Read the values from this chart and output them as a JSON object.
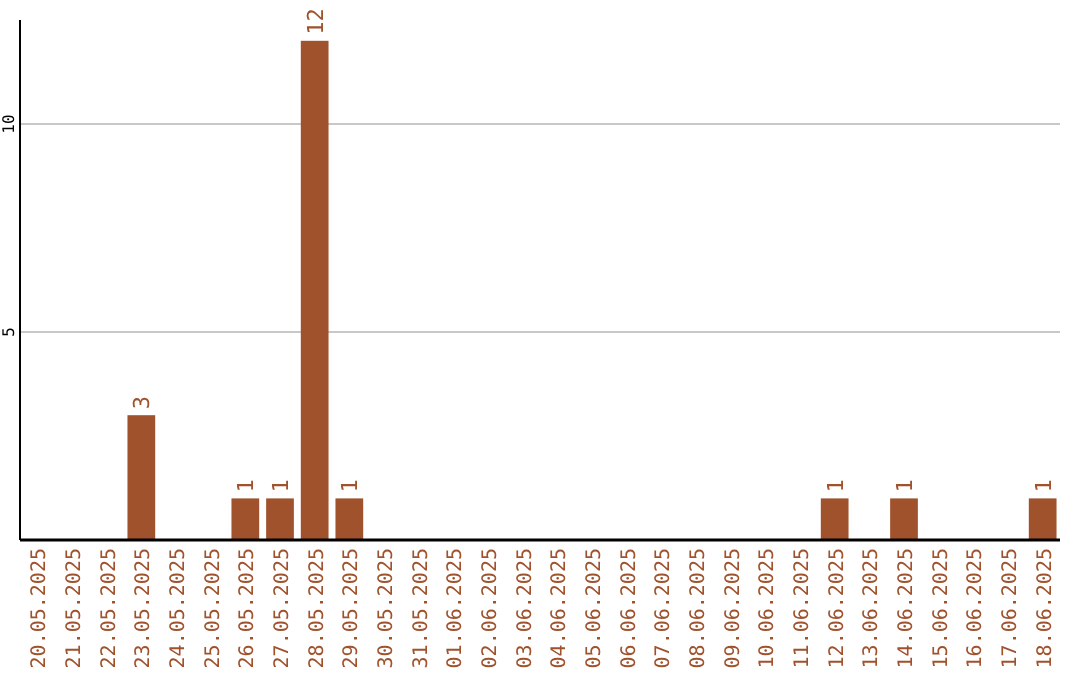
{
  "chart_data": {
    "type": "bar",
    "categories": [
      "20.05.2025",
      "21.05.2025",
      "22.05.2025",
      "23.05.2025",
      "24.05.2025",
      "25.05.2025",
      "26.05.2025",
      "27.05.2025",
      "28.05.2025",
      "29.05.2025",
      "30.05.2025",
      "31.05.2025",
      "01.06.2025",
      "02.06.2025",
      "03.06.2025",
      "04.06.2025",
      "05.06.2025",
      "06.06.2025",
      "07.06.2025",
      "08.06.2025",
      "09.06.2025",
      "10.06.2025",
      "11.06.2025",
      "12.06.2025",
      "13.06.2025",
      "14.06.2025",
      "15.06.2025",
      "16.06.2025",
      "17.06.2025",
      "18.06.2025"
    ],
    "values": [
      0,
      0,
      0,
      3,
      0,
      0,
      1,
      1,
      12,
      1,
      0,
      0,
      0,
      0,
      0,
      0,
      0,
      0,
      0,
      0,
      0,
      0,
      0,
      1,
      0,
      1,
      0,
      0,
      0,
      1
    ],
    "value_labels": [
      null,
      null,
      null,
      "3",
      null,
      null,
      "1",
      "1",
      "12",
      "1",
      null,
      null,
      null,
      null,
      null,
      null,
      null,
      null,
      null,
      null,
      null,
      null,
      null,
      "1",
      null,
      "1",
      null,
      null,
      null,
      "1"
    ],
    "color": "#a0522d",
    "ylim": [
      0,
      12.5
    ],
    "yticks": [
      5,
      10
    ],
    "grid": "y"
  }
}
